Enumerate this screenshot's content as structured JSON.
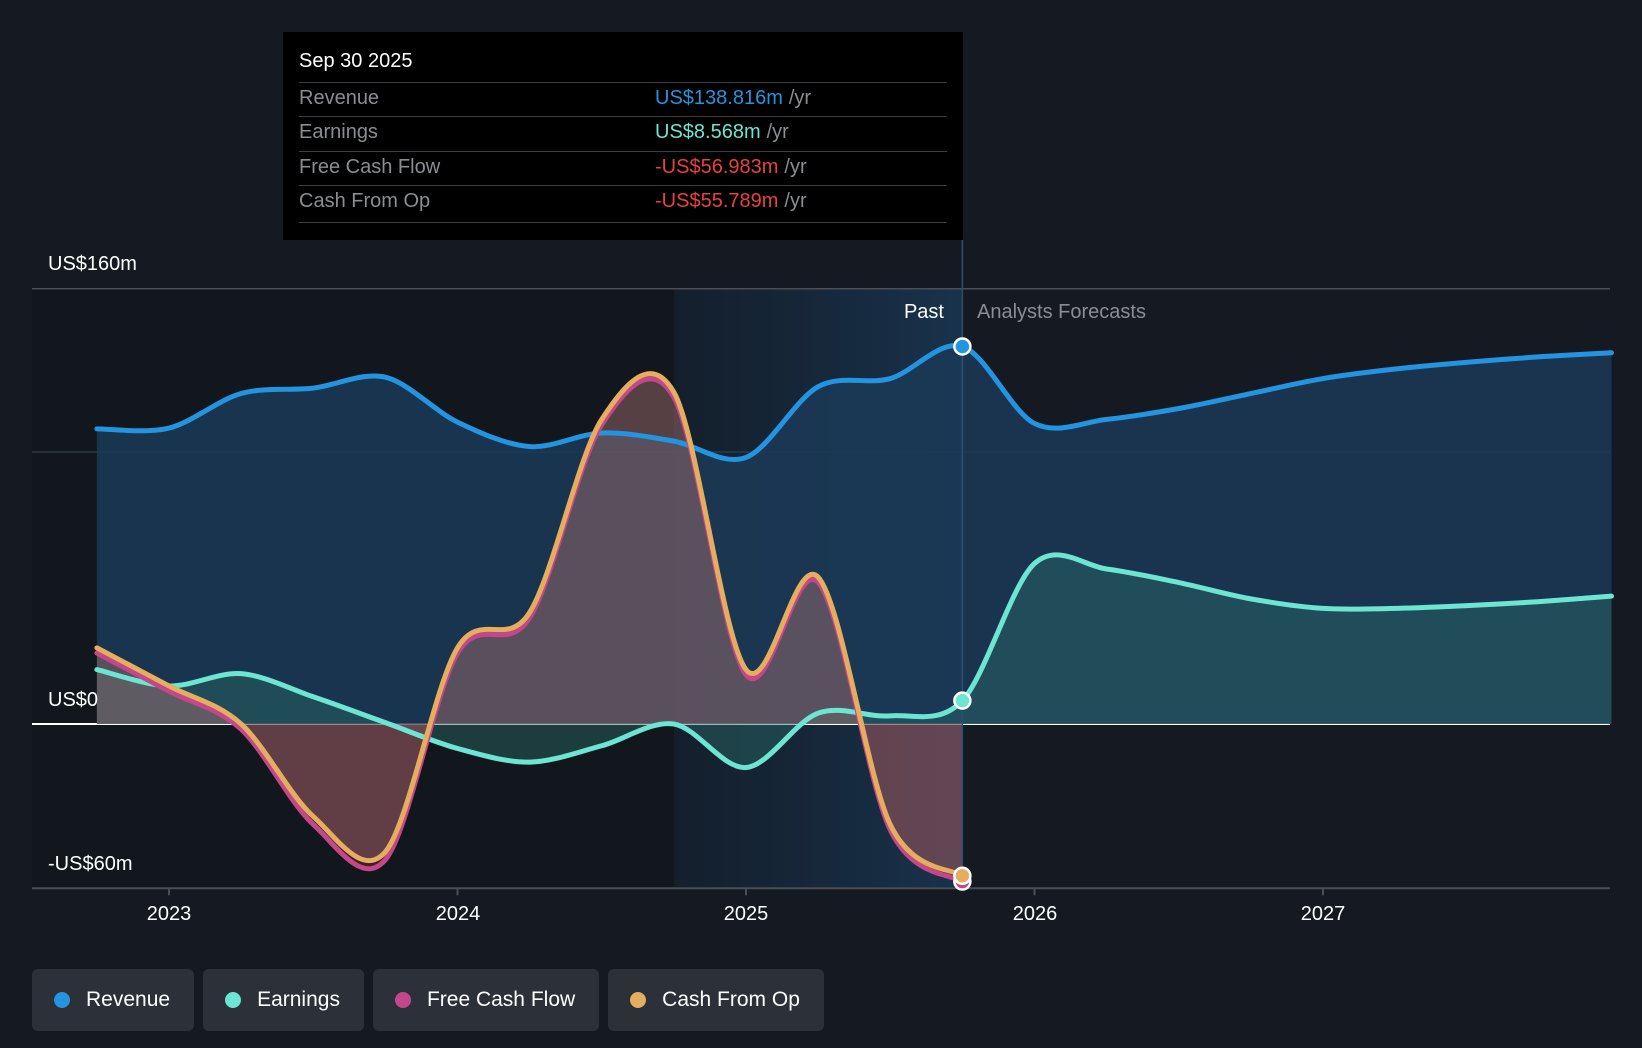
{
  "tooltip": {
    "date": "Sep 30 2025",
    "rows": [
      {
        "label": "Revenue",
        "value": "US$138.816m",
        "unit": "/yr",
        "color": "#2394df"
      },
      {
        "label": "Earnings",
        "value": "US$8.568m",
        "unit": "/yr",
        "color": "#6ce5d3"
      },
      {
        "label": "Free Cash Flow",
        "value": "-US$56.983m",
        "unit": "/yr",
        "color": "#e84142"
      },
      {
        "label": "Cash From Op",
        "value": "-US$55.789m",
        "unit": "/yr",
        "color": "#e84142"
      }
    ]
  },
  "labels": {
    "past": "Past",
    "forecast": "Analysts Forecasts"
  },
  "legend": [
    {
      "label": "Revenue",
      "color": "#2394df"
    },
    {
      "label": "Earnings",
      "color": "#6ce5d3"
    },
    {
      "label": "Free Cash Flow",
      "color": "#c3478a"
    },
    {
      "label": "Cash From Op",
      "color": "#e5ad5e"
    }
  ],
  "chart_data": {
    "type": "area",
    "title": "",
    "xlabel": "",
    "ylabel": "",
    "ylim": [
      -60,
      160
    ],
    "xlim": [
      2022.55,
      2028.0
    ],
    "y_ticks": [
      {
        "value": 160,
        "label": "US$160m"
      },
      {
        "value": 0,
        "label": "US$0"
      },
      {
        "value": -60,
        "label": "-US$60m"
      }
    ],
    "x_ticks": [
      {
        "value": 2023,
        "label": "2023"
      },
      {
        "value": 2024,
        "label": "2024"
      },
      {
        "value": 2025,
        "label": "2025"
      },
      {
        "value": 2026,
        "label": "2026"
      },
      {
        "value": 2027,
        "label": "2027"
      }
    ],
    "gridlines": [
      160,
      100,
      0
    ],
    "past_end": 2025.75,
    "highlight_start": 2024.75,
    "legend_position": "bottom-left",
    "series": [
      {
        "name": "Revenue",
        "color": "#2394df",
        "x": [
          2022.75,
          2023.0,
          2023.25,
          2023.5,
          2023.75,
          2024.0,
          2024.25,
          2024.5,
          2024.75,
          2025.0,
          2025.25,
          2025.5,
          2025.75
        ],
        "values": [
          108.5,
          108.8,
          121.5,
          123.5,
          127.5,
          111.0,
          102.0,
          107.0,
          104.0,
          98.0,
          124.0,
          127.0,
          138.8
        ],
        "forecast_x": [
          2025.75,
          2026.0,
          2026.25,
          2026.5,
          2026.75,
          2027.0,
          2027.25,
          2027.5,
          2027.75,
          2028.0
        ],
        "forecast": [
          138.8,
          110.5,
          112.0,
          116.0,
          121.5,
          127.0,
          130.5,
          133.0,
          135.0,
          136.5
        ]
      },
      {
        "name": "Earnings",
        "color": "#6ce5d3",
        "x": [
          2022.75,
          2023.0,
          2023.25,
          2023.5,
          2023.75,
          2024.0,
          2024.25,
          2024.5,
          2024.75,
          2025.0,
          2025.25,
          2025.5,
          2025.75
        ],
        "values": [
          20.0,
          14.0,
          18.5,
          10.0,
          0.5,
          -9.0,
          -14.0,
          -8.0,
          0.0,
          -16.0,
          4.0,
          3.0,
          8.6
        ],
        "forecast_x": [
          2025.75,
          2026.0,
          2026.25,
          2026.5,
          2026.75,
          2027.0,
          2027.25,
          2027.5,
          2027.75,
          2028.0
        ],
        "forecast": [
          8.6,
          59.0,
          57.0,
          52.0,
          46.0,
          42.5,
          42.5,
          43.5,
          45.0,
          47.0
        ]
      },
      {
        "name": "Free Cash Flow",
        "color": "#c3478a",
        "x": [
          2022.75,
          2023.0,
          2023.25,
          2023.5,
          2023.75,
          2024.0,
          2024.25,
          2024.5,
          2024.75,
          2025.0,
          2025.25,
          2025.5,
          2025.75
        ],
        "values": [
          27.0,
          13.0,
          -1.0,
          -36.0,
          -49.0,
          27.0,
          40.0,
          111.0,
          121.0,
          19.0,
          53.0,
          -38.0,
          -57.0
        ]
      },
      {
        "name": "Cash From Op",
        "color": "#e5ad5e",
        "x": [
          2022.75,
          2023.0,
          2023.25,
          2023.5,
          2023.75,
          2024.0,
          2024.25,
          2024.5,
          2024.75,
          2025.0,
          2025.25,
          2025.5,
          2025.75
        ],
        "values": [
          28.0,
          14.0,
          0.0,
          -34.0,
          -47.0,
          28.0,
          41.0,
          112.0,
          122.0,
          20.0,
          54.0,
          -37.0,
          -55.8
        ]
      }
    ]
  }
}
